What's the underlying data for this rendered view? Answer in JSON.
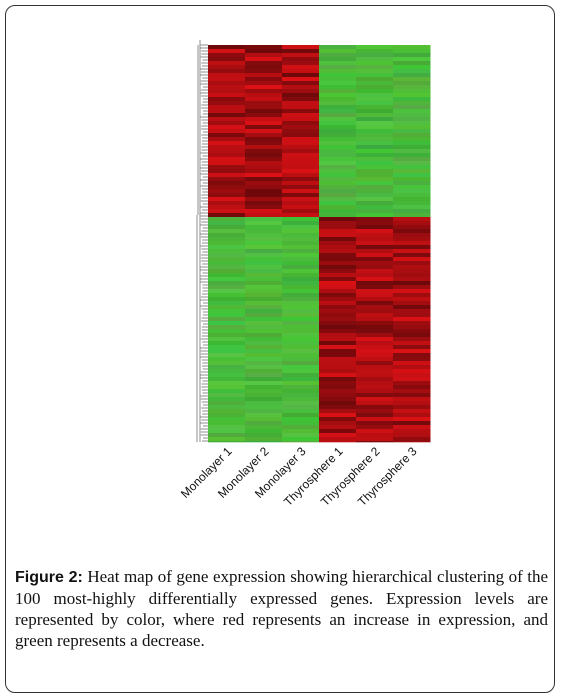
{
  "figure": {
    "column_labels": [
      "Monolayer 1",
      "Monolayer 2",
      "Monolayer 3",
      "Thyrosphere 1",
      "Thyrosphere 2",
      "Thyrosphere 3"
    ]
  },
  "caption": {
    "label": "Figure 2:",
    "text": "Heat map of gene expression showing hierarchical clustering of the 100 most-highly differentially expressed genes. Expression levels are represented by color, where red represents an increase in expression, and green represents a decrease."
  }
}
